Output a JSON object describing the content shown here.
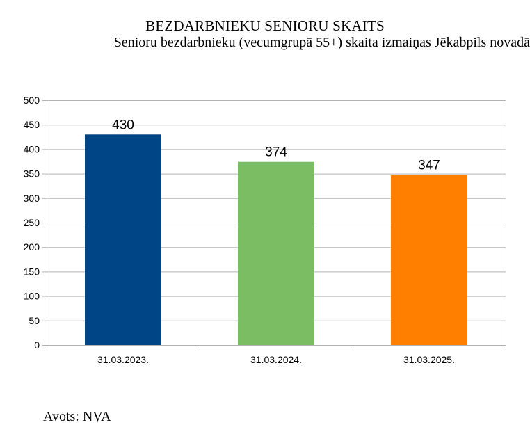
{
  "header": {
    "title": "BEZDARBNIEKU SENIORU SKAITS",
    "subtitle": "Senioru bezdarbnieku (vecumgrupā 55+) skaita izmaiņas Jēkabpils novadā"
  },
  "footer": {
    "source": "Avots: NVA"
  },
  "chart_data": {
    "type": "bar",
    "title": "BEZDARBNIEKU SENIORU SKAITS",
    "subtitle": "Senioru bezdarbnieku (vecumgrupā 55+) skaita izmaiņas Jēkabpils novadā",
    "categories": [
      "31.03.2023.",
      "31.03.2024.",
      "31.03.2025."
    ],
    "values": [
      430,
      374,
      347
    ],
    "data_labels": [
      "430",
      "374",
      "347"
    ],
    "colors": [
      "#004586",
      "#7ABD63",
      "#FF7F00"
    ],
    "yticks": [
      "0",
      "50",
      "100",
      "150",
      "200",
      "250",
      "300",
      "350",
      "400",
      "450",
      "500"
    ],
    "ylim": [
      0,
      500
    ],
    "xlabel": "",
    "ylabel": "",
    "grid": true,
    "legend": "none",
    "grid_color": "#b3b3b3"
  }
}
